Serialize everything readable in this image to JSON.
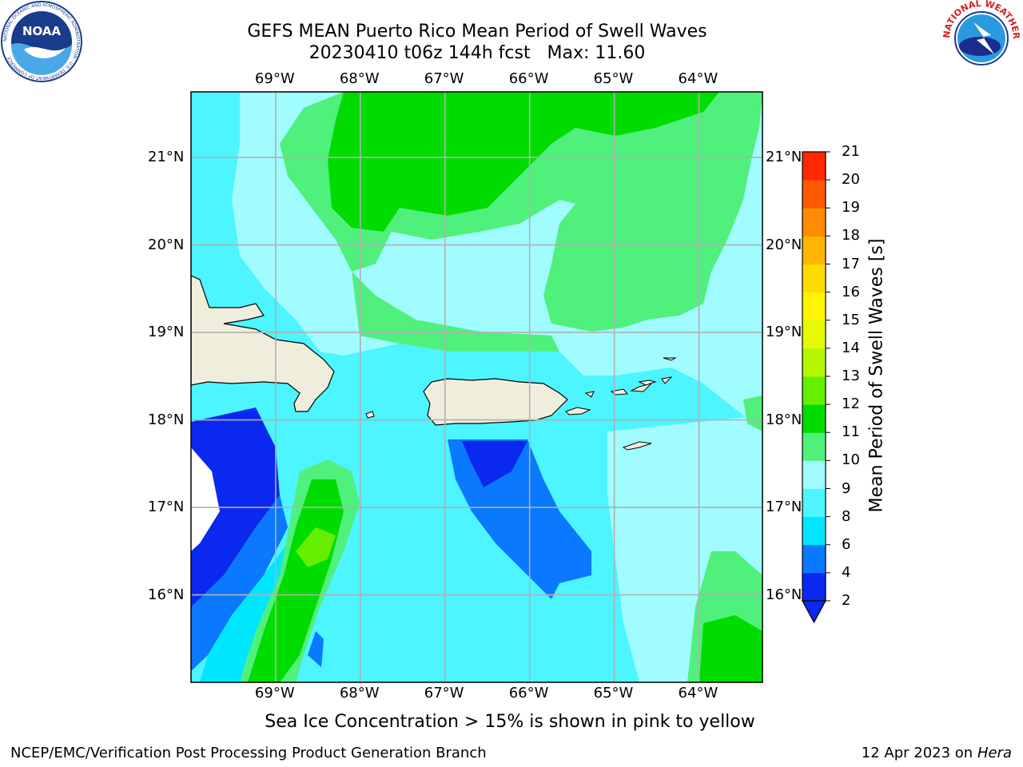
{
  "header": {
    "title_line1": "GEFS MEAN Puerto Rico Mean Period of Swell Waves",
    "title_line2": "20230410 t06z 144h fcst   Max: 11.60"
  },
  "logos": {
    "left": {
      "text": "NOAA",
      "ring_text": "NATIONAL OCEANIC AND ATMOSPHERIC ADMINISTRATION · U.S. DEPARTMENT OF COMMERCE",
      "color": "#1a3c8c"
    },
    "right": {
      "ring_text": "NATIONAL WEATHER SERVICE",
      "color": "#d42020"
    }
  },
  "map": {
    "lon_labels": [
      "69°W",
      "68°W",
      "67°W",
      "66°W",
      "65°W",
      "64°W"
    ],
    "lat_labels": [
      "21°N",
      "20°N",
      "19°N",
      "18°N",
      "17°N",
      "16°N"
    ],
    "lon_range": [
      -70.0,
      -63.25
    ],
    "lat_range": [
      15.0,
      21.75
    ],
    "grid": true
  },
  "colorbar": {
    "label": "Mean Period of Swell Waves [s]",
    "ticks": [
      "2",
      "4",
      "6",
      "8",
      "9",
      "10",
      "11",
      "12",
      "13",
      "14",
      "15",
      "16",
      "17",
      "18",
      "19",
      "20",
      "21"
    ],
    "colors": [
      "#0a28f0",
      "#0a78ff",
      "#00e6ff",
      "#4cf5ff",
      "#a0fcff",
      "#50f07c",
      "#00dc00",
      "#64ee00",
      "#b4f500",
      "#e6fa00",
      "#fff500",
      "#ffdc00",
      "#ffb400",
      "#ff8c00",
      "#ff5a00",
      "#ff2800"
    ],
    "under_color": "#0a28f0"
  },
  "footer": {
    "subtitle": "Sea Ice Concentration > 15% is shown in pink to yellow",
    "left": "NCEP/EMC/Verification Post Processing Product Generation Branch",
    "right_prefix": "12 Apr 2023 on ",
    "right_italic": "Hera"
  }
}
